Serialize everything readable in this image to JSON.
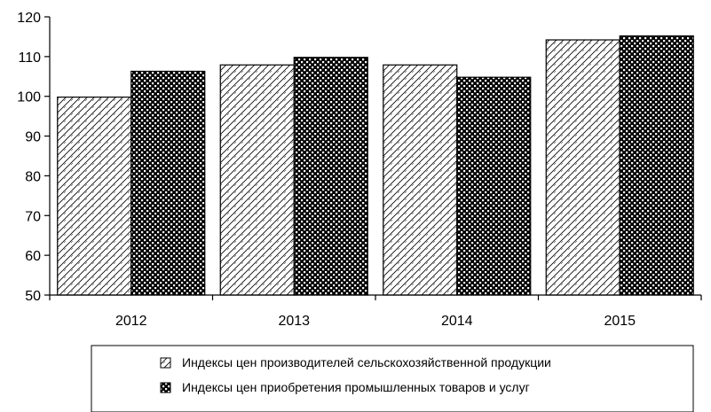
{
  "chart_data": {
    "type": "bar",
    "categories": [
      "2012",
      "2013",
      "2014",
      "2015"
    ],
    "series": [
      {
        "name": "Индексы цен производителей сельскохозяйственной продукции",
        "values": [
          99.8,
          107.9,
          107.9,
          114.2
        ]
      },
      {
        "name": "Индексы цен приобретения промышленных товаров и услуг",
        "values": [
          106.3,
          109.8,
          104.8,
          115.2
        ]
      }
    ],
    "y_ticks": [
      "50",
      "60",
      "70",
      "80",
      "90",
      "100",
      "110",
      "120"
    ],
    "ylim": [
      50,
      120
    ],
    "grid": false,
    "legend_position": "bottom"
  }
}
